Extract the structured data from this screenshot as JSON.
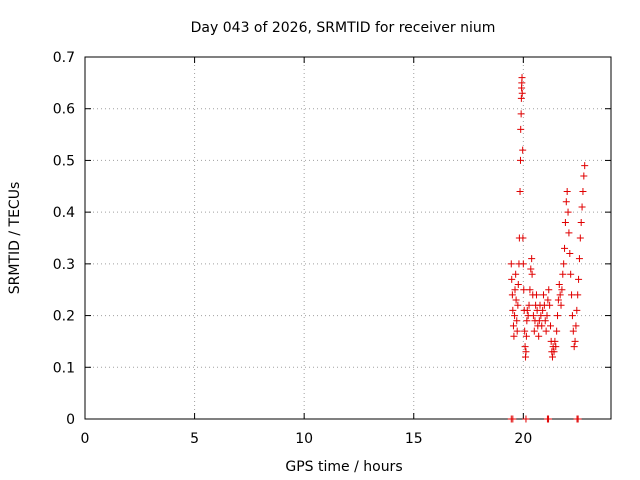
{
  "chart_data": {
    "type": "scatter",
    "title": "Day 043 of 2026, SRMTID for receiver nium",
    "xlabel": "GPS time / hours",
    "ylabel": "SRMTID / TECUs",
    "xlim": [
      0,
      24
    ],
    "ylim": [
      0,
      0.7
    ],
    "xticks": [
      0,
      5,
      10,
      15,
      20
    ],
    "xtick_labels": [
      "0",
      "5",
      "10",
      "15",
      "20"
    ],
    "yticks": [
      0,
      0.1,
      0.2,
      0.3,
      0.4,
      0.5,
      0.6,
      0.7
    ],
    "ytick_labels": [
      "0",
      "0.1",
      "0.2",
      "0.3",
      "0.4",
      "0.5",
      "0.6",
      "0.7"
    ],
    "grid": true,
    "marker": "+",
    "color": "#e00000",
    "series": [
      {
        "name": "SRMTID",
        "points": [
          [
            19.45,
            0.3
          ],
          [
            19.47,
            0.27
          ],
          [
            19.5,
            0.24
          ],
          [
            19.52,
            0.21
          ],
          [
            19.55,
            0.18
          ],
          [
            19.57,
            0.16
          ],
          [
            19.6,
            0.2
          ],
          [
            19.62,
            0.25
          ],
          [
            19.65,
            0.28
          ],
          [
            19.67,
            0.23
          ],
          [
            19.7,
            0.19
          ],
          [
            19.72,
            0.17
          ],
          [
            19.75,
            0.22
          ],
          [
            19.77,
            0.26
          ],
          [
            19.8,
            0.3
          ],
          [
            19.82,
            0.35
          ],
          [
            19.85,
            0.44
          ],
          [
            19.87,
            0.5
          ],
          [
            19.88,
            0.56
          ],
          [
            19.9,
            0.59
          ],
          [
            19.91,
            0.62
          ],
          [
            19.92,
            0.64
          ],
          [
            19.93,
            0.65
          ],
          [
            19.94,
            0.66
          ],
          [
            19.95,
            0.63
          ],
          [
            19.97,
            0.52
          ],
          [
            19.98,
            0.35
          ],
          [
            20.0,
            0.3
          ],
          [
            20.02,
            0.25
          ],
          [
            20.04,
            0.21
          ],
          [
            20.06,
            0.17
          ],
          [
            20.08,
            0.14
          ],
          [
            20.1,
            0.12
          ],
          [
            20.12,
            0.13
          ],
          [
            20.14,
            0.16
          ],
          [
            20.16,
            0.19
          ],
          [
            20.18,
            0.21
          ],
          [
            20.22,
            0.2
          ],
          [
            20.26,
            0.22
          ],
          [
            20.3,
            0.25
          ],
          [
            20.34,
            0.29
          ],
          [
            20.38,
            0.31
          ],
          [
            20.4,
            0.28
          ],
          [
            20.43,
            0.24
          ],
          [
            20.46,
            0.2
          ],
          [
            20.5,
            0.17
          ],
          [
            20.53,
            0.19
          ],
          [
            20.56,
            0.22
          ],
          [
            20.6,
            0.24
          ],
          [
            20.63,
            0.21
          ],
          [
            20.66,
            0.18
          ],
          [
            20.7,
            0.16
          ],
          [
            20.73,
            0.19
          ],
          [
            20.76,
            0.22
          ],
          [
            20.8,
            0.2
          ],
          [
            20.84,
            0.18
          ],
          [
            20.88,
            0.21
          ],
          [
            20.92,
            0.24
          ],
          [
            20.96,
            0.22
          ],
          [
            21.0,
            0.19
          ],
          [
            21.04,
            0.17
          ],
          [
            21.08,
            0.2
          ],
          [
            21.12,
            0.23
          ],
          [
            21.16,
            0.25
          ],
          [
            21.2,
            0.22
          ],
          [
            21.24,
            0.18
          ],
          [
            21.27,
            0.15
          ],
          [
            21.3,
            0.13
          ],
          [
            21.33,
            0.12
          ],
          [
            21.36,
            0.14
          ],
          [
            21.4,
            0.13
          ],
          [
            21.44,
            0.15
          ],
          [
            21.48,
            0.14
          ],
          [
            21.52,
            0.17
          ],
          [
            21.56,
            0.2
          ],
          [
            21.6,
            0.23
          ],
          [
            21.64,
            0.26
          ],
          [
            21.68,
            0.24
          ],
          [
            21.72,
            0.22
          ],
          [
            21.76,
            0.25
          ],
          [
            21.8,
            0.28
          ],
          [
            21.84,
            0.3
          ],
          [
            21.88,
            0.33
          ],
          [
            21.92,
            0.38
          ],
          [
            21.96,
            0.42
          ],
          [
            22.0,
            0.44
          ],
          [
            22.04,
            0.4
          ],
          [
            22.08,
            0.36
          ],
          [
            22.12,
            0.32
          ],
          [
            22.16,
            0.28
          ],
          [
            22.2,
            0.24
          ],
          [
            22.24,
            0.2
          ],
          [
            22.28,
            0.17
          ],
          [
            22.32,
            0.14
          ],
          [
            22.36,
            0.15
          ],
          [
            22.4,
            0.18
          ],
          [
            22.44,
            0.21
          ],
          [
            22.48,
            0.24
          ],
          [
            22.52,
            0.27
          ],
          [
            22.56,
            0.31
          ],
          [
            22.6,
            0.35
          ],
          [
            22.64,
            0.38
          ],
          [
            22.68,
            0.41
          ],
          [
            22.72,
            0.44
          ],
          [
            22.76,
            0.47
          ],
          [
            22.8,
            0.49
          ]
        ]
      },
      {
        "name": "zero values",
        "points": [
          [
            19.45,
            0.0
          ],
          [
            19.52,
            0.0
          ],
          [
            20.12,
            0.0
          ],
          [
            21.1,
            0.0
          ],
          [
            21.15,
            0.0
          ],
          [
            22.45,
            0.0
          ],
          [
            22.5,
            0.0
          ]
        ]
      }
    ]
  }
}
